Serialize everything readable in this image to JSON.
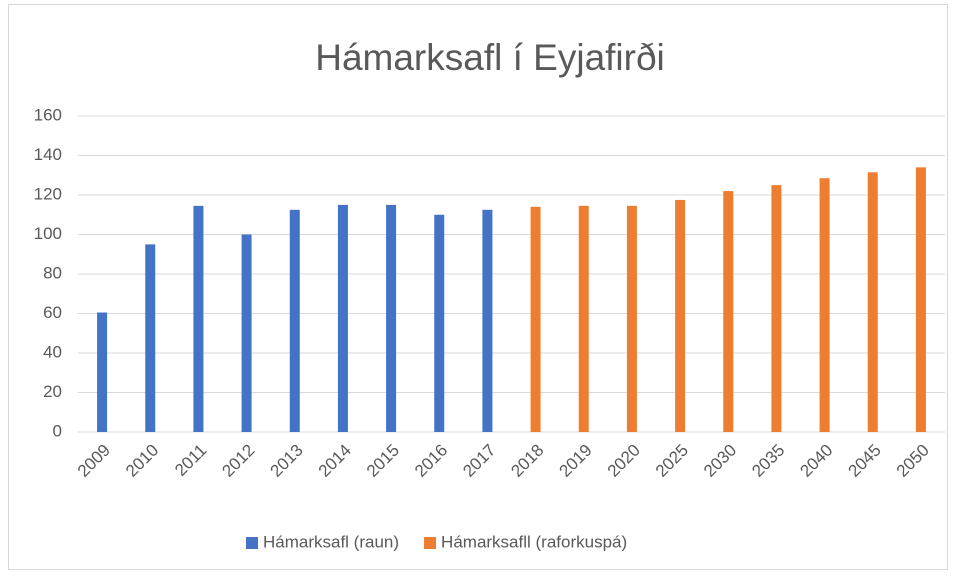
{
  "chart_data": {
    "type": "bar",
    "title": "Hámarksafl í Eyjafirði",
    "categories": [
      "2009",
      "2010",
      "2011",
      "2012",
      "2013",
      "2014",
      "2015",
      "2016",
      "2017",
      "2018",
      "2019",
      "2020",
      "2025",
      "2030",
      "2035",
      "2040",
      "2045",
      "2050"
    ],
    "series": [
      {
        "name": "Hámarksafl (raun)",
        "color": "#4472c4",
        "values": [
          60.5,
          95,
          114.5,
          100,
          112.5,
          115,
          115,
          110,
          112.5,
          null,
          null,
          null,
          null,
          null,
          null,
          null,
          null,
          null
        ]
      },
      {
        "name": "Hámarksafll (raforkuspá)",
        "color": "#ed7d31",
        "values": [
          null,
          null,
          null,
          null,
          null,
          null,
          null,
          null,
          null,
          114,
          114.5,
          114.5,
          117.5,
          122,
          125,
          128.5,
          131.5,
          134
        ]
      }
    ],
    "ylim": [
      0,
      160
    ],
    "yticks": [
      0,
      20,
      40,
      60,
      80,
      100,
      120,
      140,
      160
    ],
    "grid": true,
    "legend": "bottom"
  }
}
